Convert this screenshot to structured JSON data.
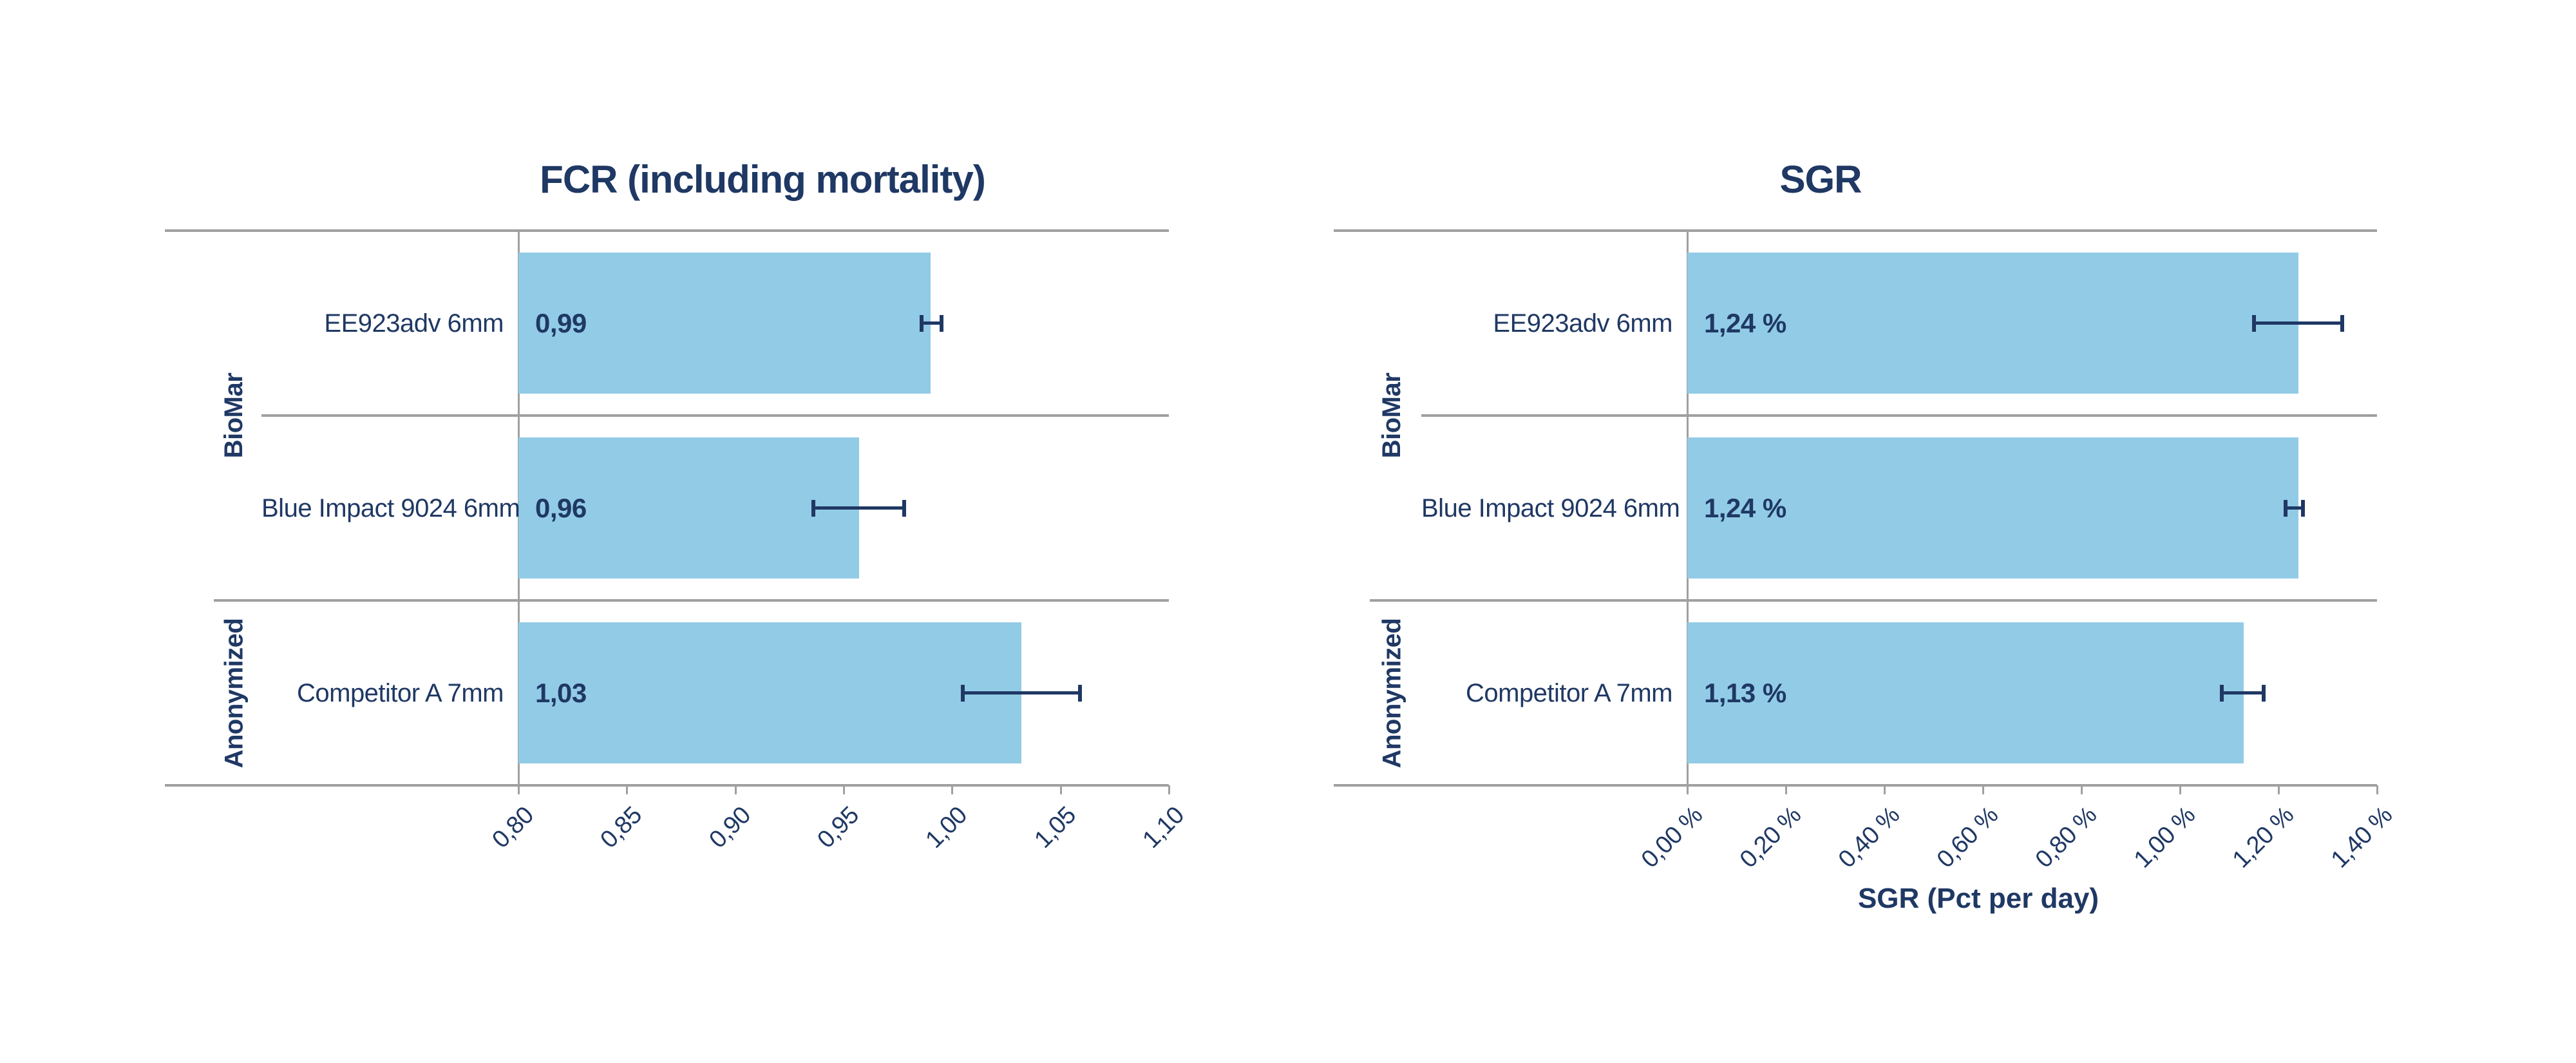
{
  "colors": {
    "bar": "#92cbe6",
    "text": "#1f3864",
    "line": "#a0a0a0"
  },
  "chart_data": [
    {
      "type": "bar",
      "orientation": "horizontal",
      "title": "FCR (including mortality)",
      "xlabel": "",
      "axis": {
        "min": 0.8,
        "max": 1.1,
        "tick_labels": [
          "0,80",
          "0,85",
          "0,90",
          "0,95",
          "1,00",
          "1,05",
          "1,10"
        ]
      },
      "groups": [
        {
          "label": "BioMar"
        },
        {
          "label": "Anonymized"
        }
      ],
      "rows": [
        {
          "group": "BioMar",
          "category": "EE923adv 6mm",
          "value": 0.99,
          "value_label": "0,99",
          "err_low": 0.986,
          "err_high": 0.995
        },
        {
          "group": "BioMar",
          "category": "Blue Impact 9024 6mm",
          "value": 0.957,
          "value_label": "0,96",
          "err_low": 0.936,
          "err_high": 0.978
        },
        {
          "group": "Anonymized",
          "category": "Competitor A 7mm",
          "value": 1.032,
          "value_label": "1,03",
          "err_low": 1.005,
          "err_high": 1.059
        }
      ],
      "legend": false,
      "grid": false
    },
    {
      "type": "bar",
      "orientation": "horizontal",
      "title": "SGR",
      "xlabel": "SGR (Pct per day)",
      "axis": {
        "min": 0.0,
        "max": 1.4,
        "tick_labels": [
          "0,00 %",
          "0,20 %",
          "0,40 %",
          "0,60 %",
          "0,80 %",
          "1,00 %",
          "1,20 %",
          "1,40 %"
        ]
      },
      "groups": [
        {
          "label": "BioMar"
        },
        {
          "label": "Anonymized"
        }
      ],
      "rows": [
        {
          "group": "BioMar",
          "category": "EE923adv 6mm",
          "value": 1.24,
          "value_label": "1,24 %",
          "err_low": 1.15,
          "err_high": 1.33
        },
        {
          "group": "BioMar",
          "category": "Blue Impact 9024 6mm",
          "value": 1.24,
          "value_label": "1,24 %",
          "err_low": 1.215,
          "err_high": 1.25
        },
        {
          "group": "Anonymized",
          "category": "Competitor  A 7mm",
          "value": 1.13,
          "value_label": "1,13 %",
          "err_low": 1.085,
          "err_high": 1.17
        }
      ],
      "legend": false,
      "grid": false
    }
  ]
}
